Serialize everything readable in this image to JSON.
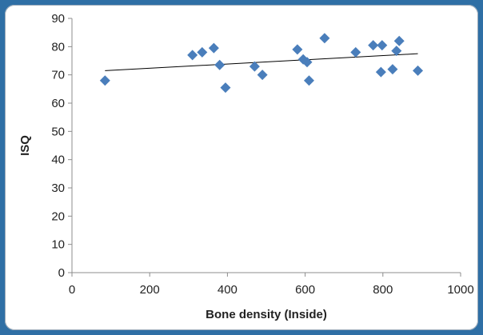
{
  "chart_data": {
    "type": "scatter",
    "title": "",
    "xlabel": "Bone density (Inside)",
    "ylabel": "ISQ",
    "xlim": [
      0,
      1000
    ],
    "ylim": [
      0,
      90
    ],
    "x_ticks": [
      "0",
      "200",
      "400",
      "600",
      "800",
      "1000"
    ],
    "y_ticks": [
      "0",
      "10",
      "20",
      "30",
      "40",
      "50",
      "60",
      "70",
      "80",
      "90"
    ],
    "grid": false,
    "legend": "none",
    "marker_color": "#4a7ebb",
    "trendline_color": "#000000",
    "trendline": {
      "x": [
        85,
        890
      ],
      "y": [
        71.5,
        77.5
      ]
    },
    "series": [
      {
        "points": [
          {
            "x": 85,
            "y": 68
          },
          {
            "x": 310,
            "y": 77
          },
          {
            "x": 335,
            "y": 78
          },
          {
            "x": 365,
            "y": 79.5
          },
          {
            "x": 380,
            "y": 73.5
          },
          {
            "x": 395,
            "y": 65.5
          },
          {
            "x": 470,
            "y": 73
          },
          {
            "x": 490,
            "y": 70
          },
          {
            "x": 580,
            "y": 79
          },
          {
            "x": 595,
            "y": 75.5
          },
          {
            "x": 605,
            "y": 74.5
          },
          {
            "x": 610,
            "y": 68
          },
          {
            "x": 650,
            "y": 83
          },
          {
            "x": 730,
            "y": 78
          },
          {
            "x": 775,
            "y": 80.5
          },
          {
            "x": 795,
            "y": 71
          },
          {
            "x": 798,
            "y": 80.5
          },
          {
            "x": 825,
            "y": 72
          },
          {
            "x": 835,
            "y": 78.5
          },
          {
            "x": 842,
            "y": 82
          },
          {
            "x": 890,
            "y": 71.5
          }
        ]
      }
    ]
  }
}
